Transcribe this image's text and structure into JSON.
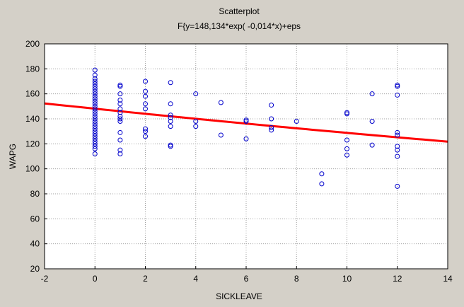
{
  "chart_data": {
    "type": "scatter",
    "title": "Scatterplot",
    "subtitle": "F{y=148,134*exp( -0,014*x)+eps",
    "xlabel": "SICKLEAVE",
    "ylabel": "WAPG",
    "xlim": [
      -2,
      14
    ],
    "ylim": [
      20,
      200
    ],
    "xticks": [
      -2,
      0,
      2,
      4,
      6,
      8,
      10,
      12,
      14
    ],
    "yticks": [
      20,
      40,
      60,
      80,
      100,
      120,
      140,
      160,
      180,
      200
    ],
    "grid": true,
    "marker_color": "#0000cc",
    "fit_color": "#ff0000",
    "points": [
      {
        "x": 0,
        "y": 179
      },
      {
        "x": 0,
        "y": 175
      },
      {
        "x": 0,
        "y": 172
      },
      {
        "x": 0,
        "y": 170
      },
      {
        "x": 0,
        "y": 168
      },
      {
        "x": 0,
        "y": 166
      },
      {
        "x": 0,
        "y": 164
      },
      {
        "x": 0,
        "y": 162
      },
      {
        "x": 0,
        "y": 160
      },
      {
        "x": 0,
        "y": 158
      },
      {
        "x": 0,
        "y": 156
      },
      {
        "x": 0,
        "y": 154
      },
      {
        "x": 0,
        "y": 152
      },
      {
        "x": 0,
        "y": 150
      },
      {
        "x": 0,
        "y": 148
      },
      {
        "x": 0,
        "y": 146
      },
      {
        "x": 0,
        "y": 144
      },
      {
        "x": 0,
        "y": 142
      },
      {
        "x": 0,
        "y": 140
      },
      {
        "x": 0,
        "y": 138
      },
      {
        "x": 0,
        "y": 136
      },
      {
        "x": 0,
        "y": 134
      },
      {
        "x": 0,
        "y": 132
      },
      {
        "x": 0,
        "y": 130
      },
      {
        "x": 0,
        "y": 128
      },
      {
        "x": 0,
        "y": 126
      },
      {
        "x": 0,
        "y": 124
      },
      {
        "x": 0,
        "y": 122
      },
      {
        "x": 0,
        "y": 120
      },
      {
        "x": 0,
        "y": 118
      },
      {
        "x": 0,
        "y": 116
      },
      {
        "x": 0,
        "y": 112
      },
      {
        "x": 1,
        "y": 167
      },
      {
        "x": 1,
        "y": 166
      },
      {
        "x": 1,
        "y": 160
      },
      {
        "x": 1,
        "y": 155
      },
      {
        "x": 1,
        "y": 152
      },
      {
        "x": 1,
        "y": 148
      },
      {
        "x": 1,
        "y": 145
      },
      {
        "x": 1,
        "y": 142
      },
      {
        "x": 1,
        "y": 140
      },
      {
        "x": 1,
        "y": 138
      },
      {
        "x": 1,
        "y": 129
      },
      {
        "x": 1,
        "y": 123
      },
      {
        "x": 1,
        "y": 115
      },
      {
        "x": 1,
        "y": 112
      },
      {
        "x": 2,
        "y": 170
      },
      {
        "x": 2,
        "y": 162
      },
      {
        "x": 2,
        "y": 158
      },
      {
        "x": 2,
        "y": 152
      },
      {
        "x": 2,
        "y": 148
      },
      {
        "x": 2,
        "y": 132
      },
      {
        "x": 2,
        "y": 130
      },
      {
        "x": 2,
        "y": 126
      },
      {
        "x": 3,
        "y": 169
      },
      {
        "x": 3,
        "y": 152
      },
      {
        "x": 3,
        "y": 143
      },
      {
        "x": 3,
        "y": 141
      },
      {
        "x": 3,
        "y": 138
      },
      {
        "x": 3,
        "y": 134
      },
      {
        "x": 3,
        "y": 119
      },
      {
        "x": 3,
        "y": 118
      },
      {
        "x": 4,
        "y": 160
      },
      {
        "x": 4,
        "y": 138
      },
      {
        "x": 4,
        "y": 134
      },
      {
        "x": 5,
        "y": 153
      },
      {
        "x": 5,
        "y": 127
      },
      {
        "x": 6,
        "y": 139
      },
      {
        "x": 6,
        "y": 138
      },
      {
        "x": 6,
        "y": 124
      },
      {
        "x": 7,
        "y": 151
      },
      {
        "x": 7,
        "y": 140
      },
      {
        "x": 7,
        "y": 133
      },
      {
        "x": 7,
        "y": 131
      },
      {
        "x": 8,
        "y": 138
      },
      {
        "x": 9,
        "y": 96
      },
      {
        "x": 9,
        "y": 88
      },
      {
        "x": 10,
        "y": 145
      },
      {
        "x": 10,
        "y": 144
      },
      {
        "x": 10,
        "y": 123
      },
      {
        "x": 10,
        "y": 116
      },
      {
        "x": 10,
        "y": 111
      },
      {
        "x": 11,
        "y": 160
      },
      {
        "x": 11,
        "y": 138
      },
      {
        "x": 11,
        "y": 119
      },
      {
        "x": 12,
        "y": 167
      },
      {
        "x": 12,
        "y": 166
      },
      {
        "x": 12,
        "y": 159
      },
      {
        "x": 12,
        "y": 129
      },
      {
        "x": 12,
        "y": 127
      },
      {
        "x": 12,
        "y": 118
      },
      {
        "x": 12,
        "y": 115
      },
      {
        "x": 12,
        "y": 110
      },
      {
        "x": 12,
        "y": 86
      }
    ],
    "fit": {
      "a": 148.134,
      "b": -0.014
    }
  }
}
